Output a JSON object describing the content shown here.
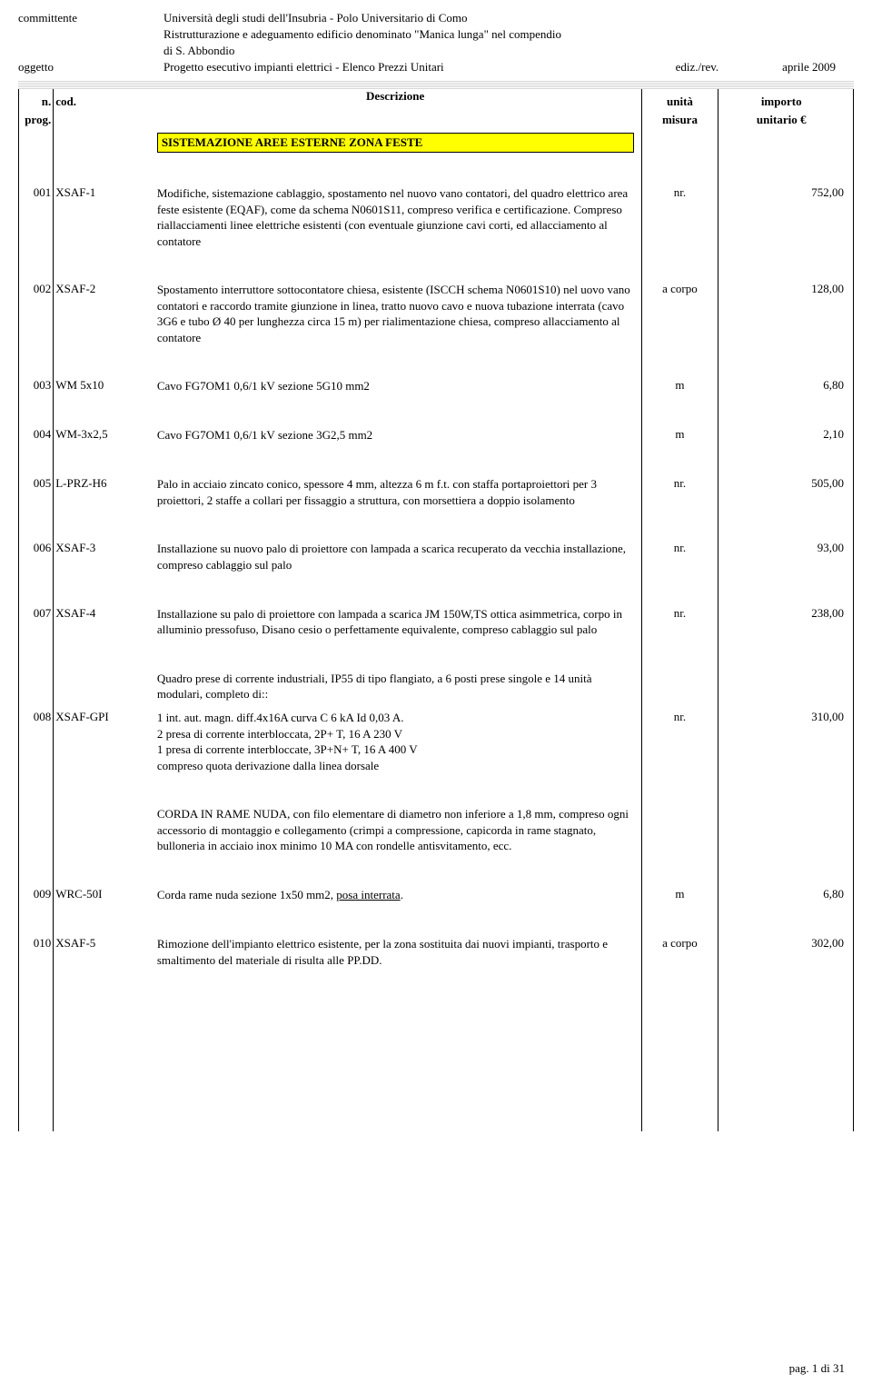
{
  "header": {
    "committente_label": "committente",
    "committente_line1": "Università degli studi dell'Insubria - Polo Universitario di Como",
    "committente_line2": "Ristrutturazione e adeguamento edificio denominato \"Manica lunga\" nel compendio",
    "committente_line3": "di S. Abbondio",
    "oggetto_label": "oggetto",
    "oggetto_value": "Progetto esecutivo impianti elettrici - Elenco Prezzi Unitari",
    "edition_label": "ediz./rev.",
    "edition_value": "aprile 2009"
  },
  "columns": {
    "n": "n.",
    "prog": "prog.",
    "cod": "cod.",
    "desc": "Descrizione",
    "unita": "unità",
    "misura": "misura",
    "importo": "importo",
    "unitario": "unitario €"
  },
  "section_title": "SISTEMAZIONE AREE ESTERNE ZONA FESTE",
  "rows": [
    {
      "n": "001",
      "cod": "XSAF-1",
      "desc": "Modifiche, sistemazione cablaggio, spostamento nel nuovo vano contatori, del quadro elettrico area feste esistente (EQAF), come da schema N0601S11, compreso verifica e certificazione. Compreso riallacciamenti linee elettriche esistenti (con eventuale giunzione cavi corti, ed allacciamento al contatore",
      "unit": "nr.",
      "imp": "752,00"
    },
    {
      "n": "002",
      "cod": "XSAF-2",
      "desc": "Spostamento interruttore sottocontatore chiesa, esistente (ISCCH schema N0601S10) nel uovo vano contatori e raccordo tramite giunzione in linea, tratto nuovo cavo e nuova tubazione interrata (cavo 3G6 e tubo Ø 40 per lunghezza circa 15 m) per rialimentazione chiesa, compreso allacciamento al contatore",
      "unit": "a corpo",
      "imp": "128,00"
    },
    {
      "n": "003",
      "cod": "WM 5x10",
      "desc": "Cavo FG7OM1 0,6/1 kV sezione 5G10 mm2",
      "unit": "m",
      "imp": "6,80"
    },
    {
      "n": "004",
      "cod": "WM-3x2,5",
      "desc": "Cavo FG7OM1 0,6/1 kV sezione 3G2,5 mm2",
      "unit": "m",
      "imp": "2,10"
    },
    {
      "n": "005",
      "cod": "L-PRZ-H6",
      "desc": "Palo in acciaio zincato conico, spessore 4 mm, altezza 6 m f.t. con staffa portaproiettori per  3 proiettori, 2 staffe a collari per fissaggio a struttura, con morsettiera a doppio isolamento",
      "unit": "nr.",
      "imp": "505,00"
    },
    {
      "n": "006",
      "cod": "XSAF-3",
      "desc": "Installazione  su nuovo palo di  proiettore con lampada a scarica recuperato da vecchia installazione, compreso cablaggio sul palo",
      "unit": "nr.",
      "imp": "93,00"
    },
    {
      "n": "007",
      "cod": "XSAF-4",
      "desc": "Installazione  su palo di  proiettore con lampada a scarica JM 150W,TS ottica asimmetrica, corpo in alluminio pressofuso, Disano cesio o perfettamente equivalente, compreso cablaggio sul palo",
      "unit": "nr.",
      "imp": "238,00"
    },
    {
      "n": "008",
      "cod": "XSAF-GPI",
      "desc_pre": "Quadro prese di corrente industriali, IP55 di tipo flangiato, a 6 posti prese singole e 14 unità modulari, completo di::",
      "desc": "1 int. aut. magn. diff.4x16A curva C 6 kA Id 0,03 A.",
      "desc_post": "2 presa di corrente interbloccata, 2P+ T, 16 A 230 V\n1 presa di corrente interbloccate, 3P+N+ T, 16 A 400 V\n compreso quota derivazione dalla linea dorsale",
      "unit": "nr.",
      "imp": "310,00"
    },
    {
      "standalone_block": true,
      "desc": "CORDA IN RAME NUDA, con filo elementare di diametro non inferiore a 1,8 mm, compreso ogni accessorio di montaggio e collegamento  (crimpi a compressione, capicorda in rame stagnato, bulloneria in acciaio inox minimo 10 MA con rondelle antisvitamento, ecc."
    },
    {
      "n": "009",
      "cod": "WRC-50I",
      "desc_prefix": "Corda rame nuda sezione 1x50 mm2, ",
      "desc_underlined": "posa interrata",
      "desc_suffix": ".",
      "unit": "m",
      "imp": "6,80"
    },
    {
      "n": "010",
      "cod": "XSAF-5",
      "desc": "Rimozione dell'impianto elettrico esistente, per la zona sostituita dai nuovi impianti, trasporto e smaltimento del materiale di risulta alle PP.DD.",
      "unit": "a corpo",
      "imp": "302,00"
    }
  ],
  "footer": "pag.  1 di 31"
}
